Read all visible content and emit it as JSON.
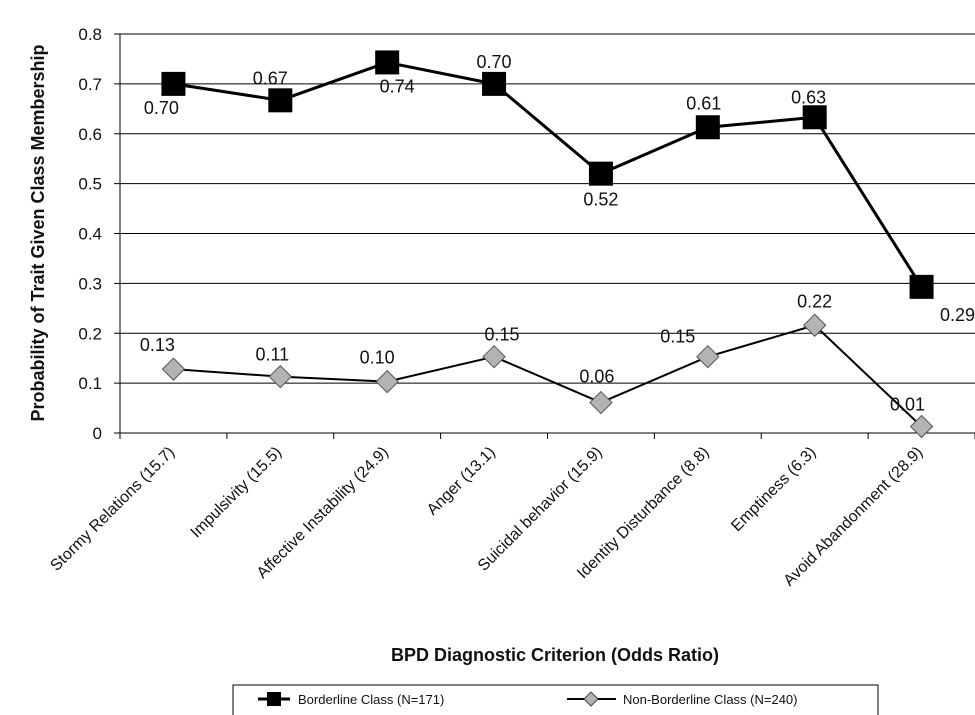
{
  "chart_data": {
    "type": "line",
    "title": "",
    "xlabel": "BPD Diagnostic Criterion (Odds Ratio)",
    "ylabel": "Probability of Trait Given Class Membership",
    "ylim": [
      0,
      0.8
    ],
    "yticks": [
      "0",
      "0.1",
      "0.2",
      "0.3",
      "0.4",
      "0.5",
      "0.6",
      "0.7",
      "0.8"
    ],
    "grid": true,
    "legend_position": "bottom",
    "categories": [
      "Stormy Relations (15.7)",
      "Impulsivity (15.5)",
      "Affective Instability (24.9)",
      "Anger (13.1)",
      "Suicidal behavior (15.9)",
      "Identity Disturbance (8.8)",
      "Emptiness (6.3)",
      "Avoid Abandonment (28.9)"
    ],
    "series": [
      {
        "name": "Borderline Class (N=171)",
        "values": [
          0.7,
          0.667,
          0.743,
          0.7,
          0.52,
          0.613,
          0.633,
          0.293
        ],
        "labels": [
          "0.70",
          "0.67",
          "0.74",
          "0.70",
          "0.52",
          "0.61",
          "0.63",
          "0.29"
        ],
        "color": "#000000",
        "marker": "square"
      },
      {
        "name": "Non-Borderline Class (N=240)",
        "values": [
          0.128,
          0.113,
          0.103,
          0.153,
          0.061,
          0.153,
          0.216,
          0.013
        ],
        "labels": [
          "0.13",
          "0.11",
          "0.10",
          "0.15",
          "0.06",
          "0.15",
          "0.22",
          "0.01"
        ],
        "color": "#b3b3b3",
        "marker": "diamond"
      }
    ]
  }
}
